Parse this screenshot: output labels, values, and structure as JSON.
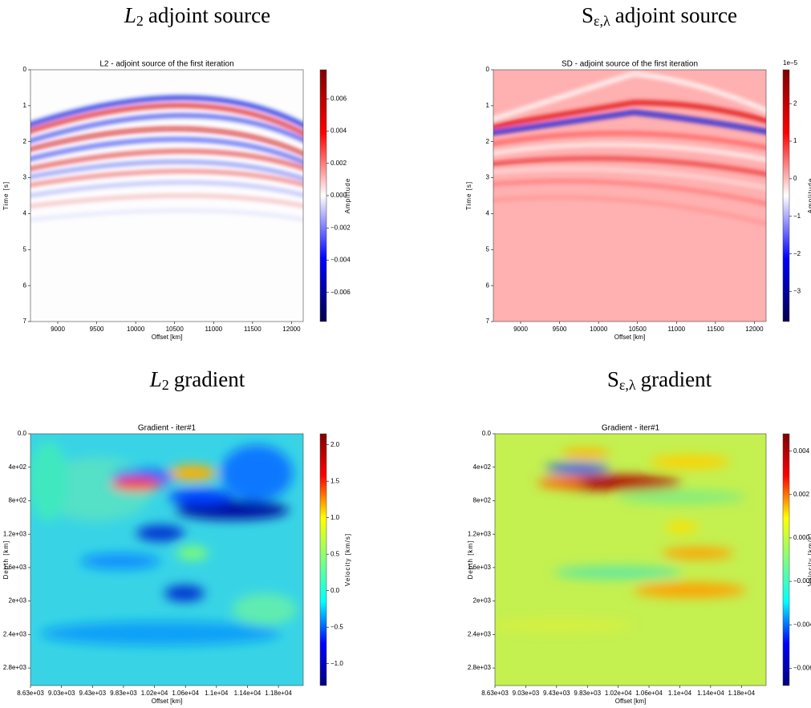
{
  "chart_data": [
    {
      "type": "heatmap",
      "heading_symbol": "L",
      "heading_subscript": "2",
      "heading_text": "adjoint source",
      "title": "L2 - adjoint source of the first iteration",
      "x_label": "Offset [km]",
      "y_label": "Time [s]",
      "xlim": [
        8650,
        12150
      ],
      "xticks": [
        9000,
        9500,
        10000,
        10500,
        11000,
        11500,
        12000
      ],
      "ylim": [
        7,
        0
      ],
      "yticks": [
        0,
        1,
        2,
        3,
        4,
        5,
        6,
        7
      ],
      "colorbar_label": "Amplitude",
      "colorscale": [
        "#00004c",
        "#0000ff",
        "#ffffff",
        "#ff0000",
        "#800000"
      ],
      "clim": [
        -0.0078,
        0.0078
      ],
      "cticks": [
        {
          "value": -0.006,
          "label": "−0.006"
        },
        {
          "value": -0.004,
          "label": "−0.004"
        },
        {
          "value": -0.002,
          "label": "−0.002"
        },
        {
          "value": 0,
          "label": "0.000"
        },
        {
          "value": 0.002,
          "label": "0.002"
        },
        {
          "value": 0.004,
          "label": "0.004"
        },
        {
          "value": 0.006,
          "label": "0.006"
        }
      ]
    },
    {
      "type": "heatmap",
      "heading_symbol": "S",
      "heading_subscript": "ε,λ",
      "heading_text": "adjoint source",
      "title": "SD - adjoint source of the first iteration",
      "x_label": "Offset [km]",
      "y_label": "Time [s]",
      "xlim": [
        8650,
        12150
      ],
      "xticks": [
        9000,
        9500,
        10000,
        10500,
        11000,
        11500,
        12000
      ],
      "ylim": [
        7,
        0
      ],
      "yticks": [
        0,
        1,
        2,
        3,
        4,
        5,
        6,
        7
      ],
      "colorbar_label": "Amplitude",
      "colorbar_offset": "1e−5",
      "colorscale": [
        "#00004c",
        "#0000ff",
        "#ffffff",
        "#ff0000",
        "#800000"
      ],
      "clim": [
        -3.8,
        2.9
      ],
      "cticks": [
        {
          "value": -3,
          "label": "−3"
        },
        {
          "value": -2,
          "label": "−2"
        },
        {
          "value": -1,
          "label": "−1"
        },
        0,
        1,
        2
      ]
    },
    {
      "type": "heatmap",
      "heading_symbol": "L",
      "heading_subscript": "2",
      "heading_text": "gradient",
      "title": "Gradient - iter#1",
      "x_label": "Offset [km]",
      "y_label": "Depth [km]",
      "xlim": [
        8630,
        12150
      ],
      "xticks": [
        {
          "value": 8630,
          "label": "8.63e+03"
        },
        {
          "value": 9030,
          "label": "9.03e+03"
        },
        {
          "value": 9430,
          "label": "9.43e+03"
        },
        {
          "value": 9830,
          "label": "9.83e+03"
        },
        {
          "value": 10230,
          "label": "1.02e+04"
        },
        {
          "value": 10630,
          "label": "1.06e+04"
        },
        {
          "value": 11030,
          "label": "1.1e+04"
        },
        {
          "value": 11430,
          "label": "1.14e+04"
        },
        {
          "value": 11830,
          "label": "1.18e+04"
        }
      ],
      "ylim": [
        3010,
        0
      ],
      "yticks": [
        {
          "value": 0,
          "label": "0.0"
        },
        {
          "value": 400,
          "label": "4e+02"
        },
        {
          "value": 800,
          "label": "8e+02"
        },
        {
          "value": 1200,
          "label": "1.2e+03"
        },
        {
          "value": 1600,
          "label": "1.6e+03"
        },
        {
          "value": 2000,
          "label": "2e+03"
        },
        {
          "value": 2400,
          "label": "2.4e+03"
        },
        {
          "value": 2800,
          "label": "2.8e+03"
        }
      ],
      "colorbar_label": "Velocity [km/s]",
      "colorscale": [
        "#00007f",
        "#0000ff",
        "#00ffff",
        "#7fff7f",
        "#ffff00",
        "#ff0000",
        "#7f0000"
      ],
      "clim": [
        -1.3,
        2.15
      ],
      "cticks": [
        {
          "value": -1,
          "label": "−1.0"
        },
        {
          "value": -0.5,
          "label": "−0.5"
        },
        {
          "value": 0,
          "label": "0.0"
        },
        {
          "value": 0.5,
          "label": "0.5"
        },
        {
          "value": 1,
          "label": "1.0"
        },
        {
          "value": 1.5,
          "label": "1.5"
        },
        {
          "value": 2,
          "label": "2.0"
        }
      ]
    },
    {
      "type": "heatmap",
      "heading_symbol": "S",
      "heading_subscript": "ε,λ",
      "heading_text": "gradient",
      "title": "Gradient - iter#1",
      "x_label": "Offset [km]",
      "y_label": "Depth [km]",
      "xlim": [
        8630,
        12150
      ],
      "xticks": [
        {
          "value": 8630,
          "label": "8.63e+03"
        },
        {
          "value": 9030,
          "label": "9.03e+03"
        },
        {
          "value": 9430,
          "label": "9.43e+03"
        },
        {
          "value": 9830,
          "label": "9.83e+03"
        },
        {
          "value": 10230,
          "label": "1.02e+04"
        },
        {
          "value": 10630,
          "label": "1.06e+04"
        },
        {
          "value": 11030,
          "label": "1.1e+04"
        },
        {
          "value": 11430,
          "label": "1.14e+04"
        },
        {
          "value": 11830,
          "label": "1.18e+04"
        }
      ],
      "ylim": [
        3010,
        0
      ],
      "yticks": [
        {
          "value": 0,
          "label": "0.0"
        },
        {
          "value": 400,
          "label": "4e+02"
        },
        {
          "value": 800,
          "label": "8e+02"
        },
        {
          "value": 1200,
          "label": "1.2e+03"
        },
        {
          "value": 1600,
          "label": "1.6e+03"
        },
        {
          "value": 2000,
          "label": "2e+03"
        },
        {
          "value": 2400,
          "label": "2.4e+03"
        },
        {
          "value": 2800,
          "label": "2.8e+03"
        }
      ],
      "colorbar_label": "Velocity [km/s]",
      "colorscale": [
        "#00007f",
        "#0000ff",
        "#00ffff",
        "#7fff7f",
        "#ffff00",
        "#ff0000",
        "#7f0000"
      ],
      "clim": [
        -0.0068,
        0.0048
      ],
      "cticks": [
        {
          "value": -0.006,
          "label": "−0.006"
        },
        {
          "value": -0.004,
          "label": "−0.004"
        },
        {
          "value": -0.002,
          "label": "−0.002"
        },
        {
          "value": 0,
          "label": "0.000"
        },
        {
          "value": 0.002,
          "label": "0.002"
        },
        {
          "value": 0.004,
          "label": "0.004"
        }
      ]
    }
  ]
}
